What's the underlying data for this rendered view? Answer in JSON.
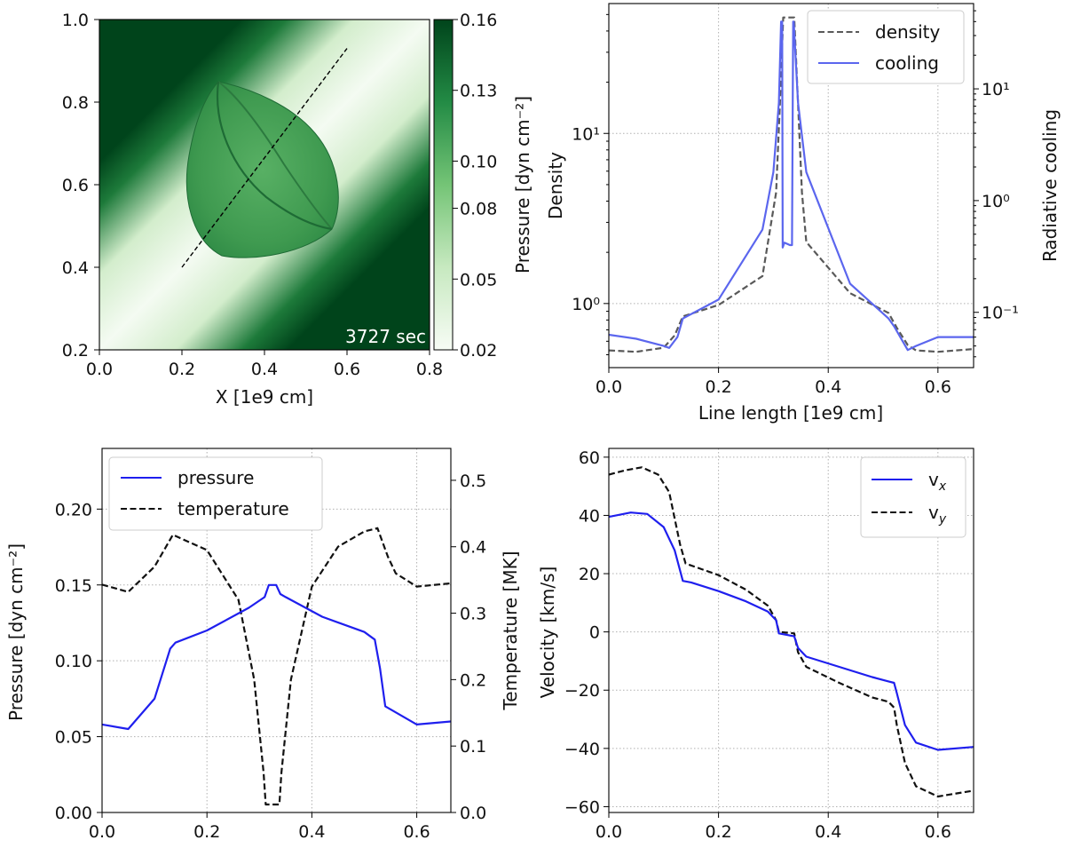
{
  "chart_data": [
    {
      "type": "heatmap",
      "xlabel": "X [1e9 cm]",
      "ylabel": "",
      "xlim": [
        0.0,
        0.8
      ],
      "ylim": [
        0.2,
        1.0
      ],
      "xticks": [
        "0.0",
        "0.2",
        "0.4",
        "0.6",
        "0.8"
      ],
      "yticks": [
        "0.2",
        "0.4",
        "0.6",
        "0.8",
        "1.0"
      ],
      "annotation": "3727 sec",
      "colorbar": {
        "label": "Pressure [dyn cm⁻²]",
        "ticks": [
          "0.02",
          "0.05",
          "0.08",
          "0.10",
          "0.13",
          "0.16"
        ],
        "min": 0.02,
        "max": 0.16,
        "cmap": [
          "#f7fcf5",
          "#c7e9c0",
          "#74c476",
          "#238b45",
          "#00441b"
        ]
      },
      "cut_line": {
        "x": [
          0.2,
          0.6
        ],
        "y": [
          0.4,
          0.93
        ]
      },
      "field": {
        "background": 0.16,
        "band_center": 0.1,
        "band_edge": 0.02,
        "blob_center": [
          0.42,
          0.64
        ],
        "blob_value": 0.11,
        "tips": [
          [
            0.29,
            0.85
          ],
          [
            0.56,
            0.56
          ]
        ]
      }
    },
    {
      "type": "line",
      "xlabel": "Line length [1e9 cm]",
      "ylabel": "Density",
      "y2label": "Radiative cooling",
      "xlim": [
        0.0,
        0.665
      ],
      "xticks": [
        "0.0",
        "0.2",
        "0.4",
        "0.6"
      ],
      "yscale": "log",
      "ylim": [
        0.42,
        58
      ],
      "y2scale": "log",
      "y2lim": [
        0.032,
        58
      ],
      "yticks": [
        "10⁰",
        "10¹"
      ],
      "y2ticks": [
        "10⁻¹",
        "10⁰",
        "10¹"
      ],
      "grid": true,
      "legend": "top-right",
      "series": [
        {
          "name": "density",
          "axis": "left",
          "style": "dashed",
          "color": "#595959",
          "x": [
            0.0,
            0.05,
            0.1,
            0.12,
            0.135,
            0.2,
            0.28,
            0.305,
            0.312,
            0.318,
            0.325,
            0.338,
            0.345,
            0.352,
            0.36,
            0.44,
            0.51,
            0.525,
            0.545,
            0.56,
            0.6,
            0.665
          ],
          "y": [
            0.53,
            0.52,
            0.55,
            0.65,
            0.84,
            0.98,
            1.45,
            4.5,
            15.0,
            48.0,
            48.0,
            48.0,
            15.0,
            4.5,
            2.3,
            1.15,
            0.88,
            0.72,
            0.57,
            0.53,
            0.52,
            0.54
          ]
        },
        {
          "name": "cooling",
          "axis": "right",
          "style": "solid",
          "color": "#5b66ee",
          "x": [
            0.0,
            0.05,
            0.1,
            0.11,
            0.125,
            0.135,
            0.2,
            0.28,
            0.3,
            0.31,
            0.314,
            0.316,
            0.317,
            0.32,
            0.33,
            0.334,
            0.336,
            0.337,
            0.345,
            0.36,
            0.44,
            0.51,
            0.52,
            0.545,
            0.56,
            0.6,
            0.665
          ],
          "y": [
            0.063,
            0.058,
            0.05,
            0.048,
            0.06,
            0.088,
            0.13,
            0.55,
            1.8,
            7.5,
            40.0,
            40.0,
            0.38,
            0.42,
            0.4,
            0.4,
            40.0,
            40.0,
            7.5,
            1.8,
            0.18,
            0.088,
            0.075,
            0.046,
            0.05,
            0.06,
            0.06
          ]
        }
      ]
    },
    {
      "type": "line",
      "xlabel": "",
      "ylabel": "Pressure [dyn cm⁻²]",
      "y2label": "Temperature [MK]",
      "xlim": [
        0.0,
        0.665
      ],
      "xticks": [
        "0.0",
        "0.2",
        "0.4",
        "0.6"
      ],
      "ylim": [
        0.0,
        0.24
      ],
      "yticks": [
        "0.00",
        "0.05",
        "0.10",
        "0.15",
        "0.20"
      ],
      "y2lim": [
        0.0,
        0.548
      ],
      "y2ticks": [
        "0.0",
        "0.1",
        "0.2",
        "0.3",
        "0.4",
        "0.5"
      ],
      "grid": true,
      "legend": "top-left",
      "series": [
        {
          "name": "pressure",
          "axis": "left",
          "style": "solid",
          "color": "#1f1fee",
          "x": [
            0.0,
            0.05,
            0.1,
            0.13,
            0.14,
            0.2,
            0.28,
            0.31,
            0.318,
            0.332,
            0.34,
            0.35,
            0.42,
            0.5,
            0.52,
            0.53,
            0.54,
            0.6,
            0.665
          ],
          "y": [
            0.058,
            0.055,
            0.075,
            0.108,
            0.112,
            0.12,
            0.135,
            0.142,
            0.15,
            0.15,
            0.144,
            0.142,
            0.129,
            0.119,
            0.114,
            0.095,
            0.07,
            0.058,
            0.06
          ]
        },
        {
          "name": "temperature",
          "axis": "right",
          "style": "dashed",
          "color": "#111111",
          "x": [
            0.0,
            0.05,
            0.1,
            0.135,
            0.2,
            0.26,
            0.29,
            0.308,
            0.312,
            0.338,
            0.342,
            0.36,
            0.4,
            0.45,
            0.5,
            0.525,
            0.545,
            0.56,
            0.6,
            0.665
          ],
          "y": [
            0.343,
            0.332,
            0.37,
            0.418,
            0.395,
            0.32,
            0.2,
            0.06,
            0.012,
            0.012,
            0.06,
            0.2,
            0.34,
            0.4,
            0.423,
            0.428,
            0.385,
            0.36,
            0.34,
            0.345
          ]
        }
      ]
    },
    {
      "type": "line",
      "xlabel": "",
      "ylabel": "Velocity [km/s]",
      "xlim": [
        0.0,
        0.665
      ],
      "xticks": [
        "0.0",
        "0.2",
        "0.4",
        "0.6"
      ],
      "ylim": [
        -62,
        63
      ],
      "yticks": [
        "−60",
        "−40",
        "−20",
        "0",
        "20",
        "40",
        "60"
      ],
      "grid": true,
      "legend": "top-right",
      "series": [
        {
          "name": "v",
          "subscript": "x",
          "style": "solid",
          "color": "#1f1fee",
          "x": [
            0.0,
            0.04,
            0.07,
            0.1,
            0.12,
            0.135,
            0.15,
            0.2,
            0.25,
            0.29,
            0.305,
            0.31,
            0.338,
            0.345,
            0.36,
            0.42,
            0.48,
            0.51,
            0.52,
            0.525,
            0.54,
            0.56,
            0.6,
            0.665
          ],
          "y": [
            39.5,
            41.0,
            40.5,
            36.0,
            28.0,
            17.5,
            17.0,
            14.0,
            10.5,
            7.0,
            4.0,
            -0.5,
            -1.5,
            -5.5,
            -8.5,
            -12.0,
            -15.5,
            -17.0,
            -17.5,
            -21.0,
            -32.0,
            -38.0,
            -40.5,
            -39.5
          ]
        },
        {
          "name": "v",
          "subscript": "y",
          "style": "dashed",
          "color": "#111111",
          "x": [
            0.0,
            0.03,
            0.06,
            0.09,
            0.11,
            0.13,
            0.14,
            0.2,
            0.25,
            0.29,
            0.305,
            0.31,
            0.338,
            0.345,
            0.36,
            0.42,
            0.48,
            0.51,
            0.52,
            0.525,
            0.54,
            0.56,
            0.6,
            0.665
          ],
          "y": [
            54.0,
            55.5,
            56.5,
            54.0,
            48.0,
            30.0,
            23.5,
            19.5,
            14.5,
            9.0,
            4.0,
            0.0,
            -0.5,
            -7.0,
            -12.0,
            -17.5,
            -22.5,
            -24.0,
            -26.0,
            -32.0,
            -45.0,
            -53.0,
            -56.5,
            -54.5
          ]
        }
      ]
    }
  ]
}
